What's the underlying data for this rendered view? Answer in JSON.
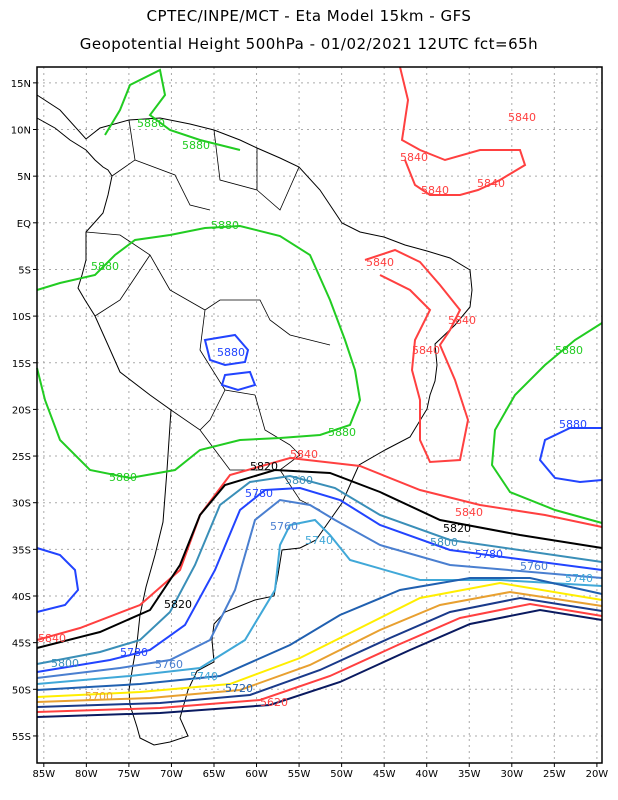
{
  "header": {
    "title": "CPTEC/INPE/MCT -  Eta Model 15km - GFS",
    "subtitle": "Geopotential Height 500hPa - 01/02/2021 12UTC fct=65h"
  },
  "axes": {
    "lon_ticks": [
      -85,
      -80,
      -75,
      -70,
      -65,
      -60,
      -55,
      -50,
      -45,
      -40,
      -35,
      -30,
      -25,
      -20
    ],
    "lon_labels": [
      "85W",
      "80W",
      "75W",
      "70W",
      "65W",
      "60W",
      "55W",
      "50W",
      "45W",
      "40W",
      "35W",
      "30W",
      "25W",
      "20W"
    ],
    "lat_ticks": [
      15,
      10,
      5,
      0,
      -5,
      -10,
      -15,
      -20,
      -25,
      -30,
      -35,
      -40,
      -45,
      -50,
      -55
    ],
    "lat_labels": [
      "15N",
      "10N",
      "5N",
      "EQ",
      "5S",
      "10S",
      "15S",
      "20S",
      "25S",
      "30S",
      "35S",
      "40S",
      "45S",
      "50S",
      "55S"
    ],
    "lon_range": [
      -85.8,
      -19.4
    ],
    "lat_range": [
      -57.9,
      16.7
    ]
  },
  "contours": {
    "levels": [
      5880,
      5840,
      5820,
      5800,
      5780,
      5760,
      5740,
      5720,
      5700,
      5680,
      5660,
      5640,
      5620
    ],
    "colors": {
      "5880": "#22cc22",
      "5840": "#ff4040",
      "5820": "#000000",
      "5800": "#3a8fb8",
      "5780": "#2244ff",
      "5760": "#4a7fd0",
      "5740": "#40a8d8",
      "5720": "#2060b0",
      "5700": "#ffee00",
      "5680": "#e8a030",
      "5660": "#1a3a8a",
      "5640": "#ff4040",
      "5620": "#0a1a60"
    },
    "labels": {
      "l5840a": "5840",
      "l5840b": "5840",
      "l5840c": "5840",
      "l5840d": "5840",
      "l5840e": "5840",
      "l5840f": "5840",
      "l5840g": "5840",
      "l5840h": "5840",
      "l5840i": "5840",
      "l5840j": "5840",
      "l5880a": "5880",
      "l5880b": "5880",
      "l5880c": "5880",
      "l5880d": "5880",
      "l5880e": "5880",
      "l5880f": "5880",
      "l5880g": "5880",
      "l5880h": "5880",
      "l5880i": "5880",
      "l5820a": "5820",
      "l5820b": "5820",
      "l5820c": "5820",
      "l5800a": "5800",
      "l5800b": "5800",
      "l5800c": "5800",
      "l5780a": "5780",
      "l5780b": "5780",
      "l5780c": "5780",
      "l5760a": "5760",
      "l5760b": "5760",
      "l5760c": "5760",
      "l5740a": "5740",
      "l5740b": "5740",
      "l5740c": "5740",
      "l5720": "5720",
      "l5700": "5700",
      "l5620": "5620"
    }
  }
}
